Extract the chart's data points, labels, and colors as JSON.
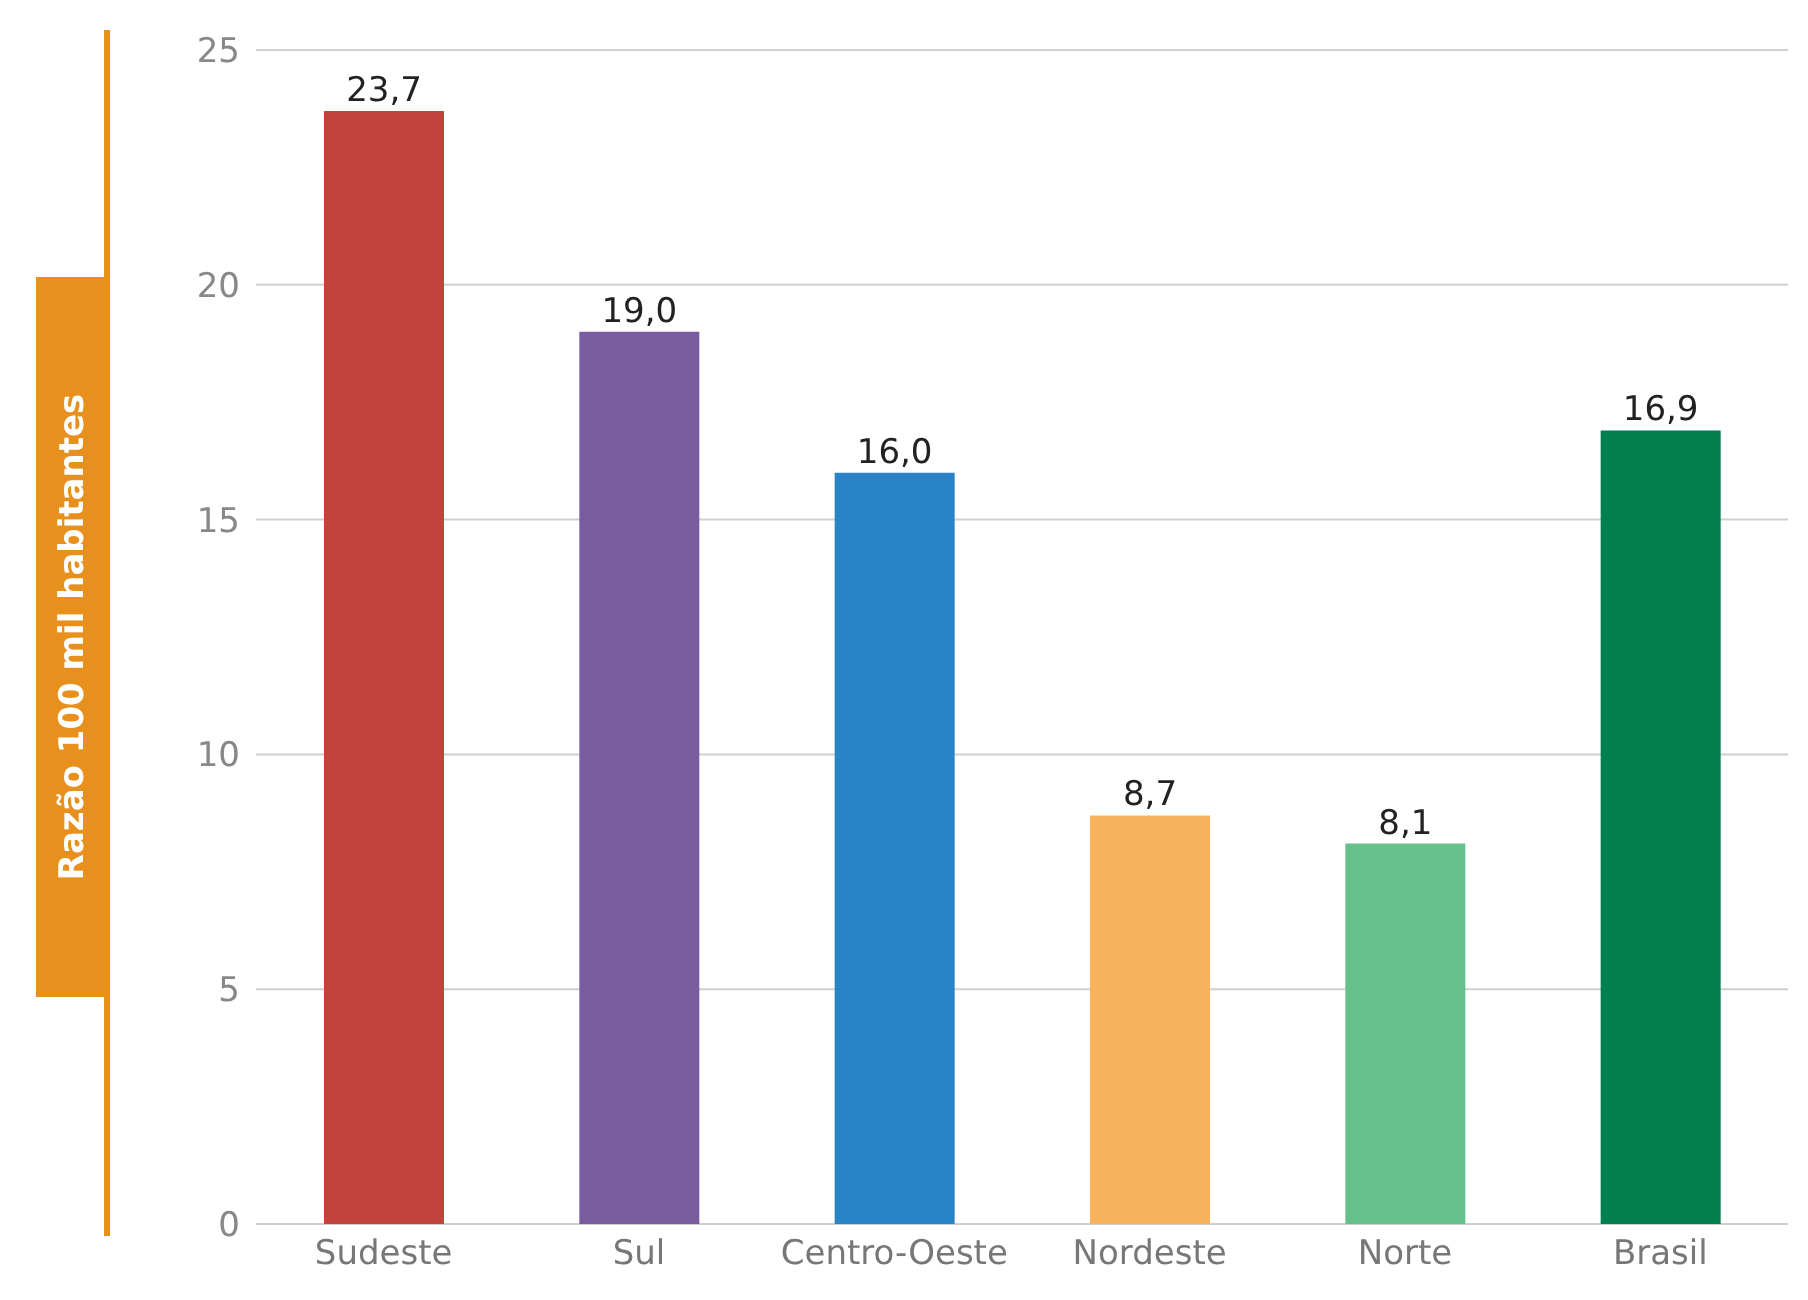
{
  "chart_data": {
    "type": "bar",
    "ylabel": "Razão 100 mil habitantes",
    "categories": [
      "Sudeste",
      "Sul",
      "Centro-Oeste",
      "Nordeste",
      "Norte",
      "Brasil"
    ],
    "values": [
      23.7,
      19.0,
      16.0,
      8.7,
      8.1,
      16.9
    ],
    "colors": [
      "#c0433c",
      "#7b5ba0",
      "#2a83c6",
      "#f9b35f",
      "#66c08a",
      "#017f4e"
    ],
    "value_labels": [
      "23,7",
      "19,0",
      "16,0",
      "8,7",
      "8,1",
      "16,9"
    ],
    "ylim": [
      0,
      25
    ],
    "yticks": [
      0,
      5,
      10,
      15,
      20,
      25
    ],
    "grid": "y"
  }
}
